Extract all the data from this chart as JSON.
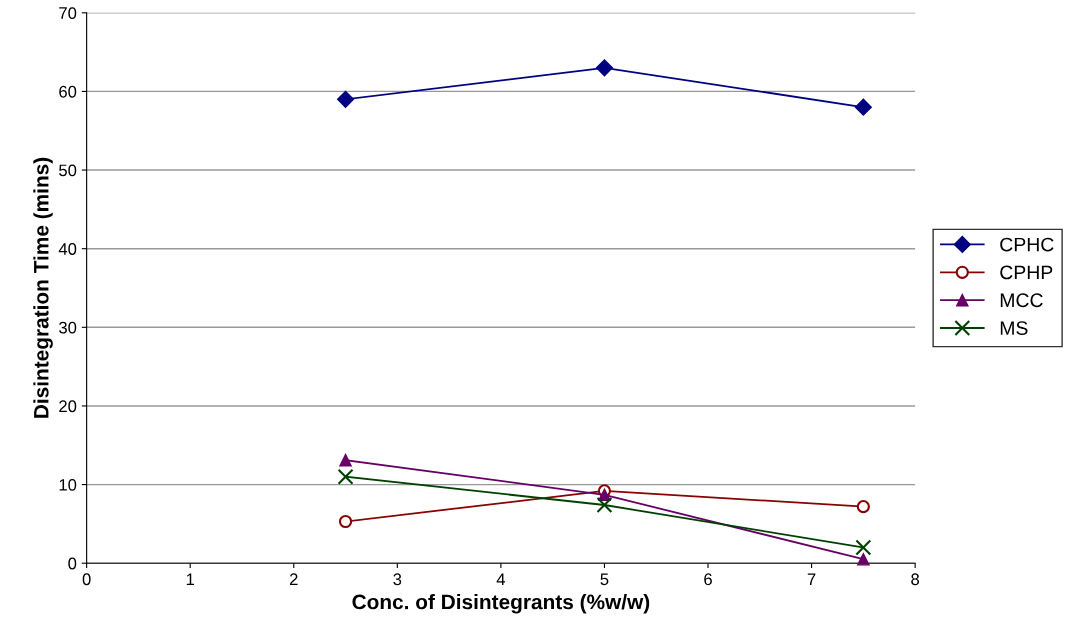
{
  "chart_data": {
    "type": "line",
    "xlabel": "Conc. of Disintegrants (%w/w)",
    "ylabel": "Disintegration Time (mins)",
    "x": [
      2.5,
      5,
      7.5
    ],
    "series": [
      {
        "name": "CPHC",
        "color": "#000080",
        "marker": "diamond",
        "values": [
          59,
          63,
          58
        ]
      },
      {
        "name": "CPHP",
        "color": "#8b0000",
        "marker": "circle",
        "values": [
          5.3,
          9.2,
          7.2
        ]
      },
      {
        "name": "MCC",
        "color": "#660066",
        "marker": "triangle",
        "values": [
          13.1,
          8.7,
          0.5
        ]
      },
      {
        "name": "MS",
        "color": "#004000",
        "marker": "cross",
        "values": [
          11,
          7.4,
          2.0
        ]
      }
    ],
    "xlim": [
      0,
      8
    ],
    "xticks": [
      0,
      1,
      2,
      3,
      4,
      5,
      6,
      7,
      8
    ],
    "ylim": [
      0,
      70
    ],
    "yticks": [
      0,
      10,
      20,
      30,
      40,
      50,
      60,
      70
    ],
    "grid": "y",
    "legend": "right",
    "line_style": "solid"
  }
}
